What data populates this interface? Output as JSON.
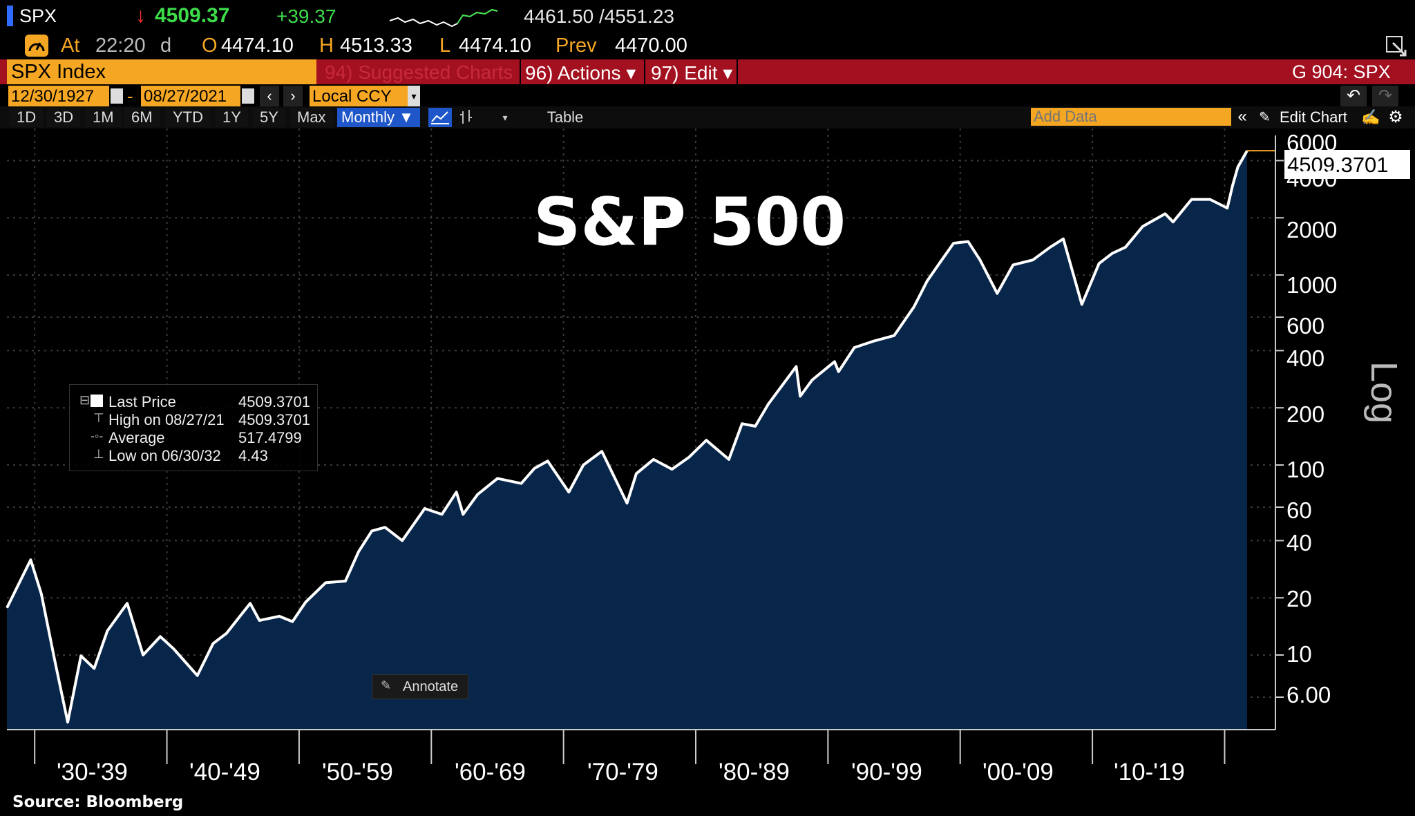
{
  "header": {
    "ticker": "SPX",
    "arrow": "↓",
    "last": "4509.37",
    "change": "+39.37",
    "bid_ask": "4461.50 /4551.23",
    "at_label": "At",
    "time": "22:20",
    "time_flag": "d",
    "open_label": "O",
    "open": "4474.10",
    "high_label": "H",
    "high": "4513.33",
    "low_label": "L",
    "low": "4474.10",
    "prev_label": "Prev",
    "prev": "4470.00"
  },
  "menubar": {
    "security": "SPX Index",
    "suggested": "94) Suggested Charts",
    "actions": "96) Actions ▾",
    "edit": "97) Edit ▾",
    "page_code": "G 904: SPX"
  },
  "datebar": {
    "start_date": "12/30/1927",
    "end_date": "08/27/2021",
    "dash": "-",
    "currency": "Local CCY"
  },
  "toolbar": {
    "periods": [
      "1D",
      "3D",
      "1M",
      "6M",
      "YTD",
      "1Y",
      "5Y",
      "Max"
    ],
    "frequency": "Monthly ▼",
    "table": "Table",
    "add_data_placeholder": "Add Data",
    "edit_chart": "Edit Chart"
  },
  "legend": {
    "rows": [
      {
        "label": "Last Price",
        "value": "4509.3701"
      },
      {
        "label": "High on 08/27/21",
        "value": "4509.3701"
      },
      {
        "label": "Average",
        "value": "517.4799"
      },
      {
        "label": "Low on 06/30/32",
        "value": "4.43"
      }
    ]
  },
  "annotate_label": "Annotate",
  "source": "Source: Bloomberg",
  "chart_data": {
    "type": "area",
    "title": "S&P 500",
    "scale": "Log",
    "last_value_label": "4509.3701",
    "y_ticks": [
      "6000",
      "4000",
      "2000",
      "1000",
      "600",
      "400",
      "200",
      "100",
      "60",
      "40",
      "20",
      "10",
      "6.00"
    ],
    "y_tick_values": [
      6000,
      4000,
      2000,
      1000,
      600,
      400,
      200,
      100,
      60,
      40,
      20,
      10,
      6
    ],
    "x_labels": [
      "'30-'39",
      "'40-'49",
      "'50-'59",
      "'60-'69",
      "'70-'79",
      "'80-'89",
      "'90-'99",
      "'00-'09",
      "'10-'19"
    ],
    "xlim": [
      1927.9,
      2021.7
    ],
    "ylim": [
      4.4,
      6000
    ],
    "series": [
      {
        "name": "SPX Index",
        "x": [
          1927.9,
          1929.7,
          1930.5,
          1931.5,
          1932.5,
          1933.5,
          1934.5,
          1935.5,
          1937.0,
          1938.2,
          1939.5,
          1940.5,
          1942.3,
          1943.5,
          1944.5,
          1946.3,
          1947.0,
          1948.5,
          1949.5,
          1950.5,
          1952.0,
          1953.5,
          1954.5,
          1955.5,
          1956.5,
          1957.8,
          1959.5,
          1960.8,
          1961.9,
          1962.4,
          1963.5,
          1965.0,
          1966.8,
          1967.8,
          1968.8,
          1970.4,
          1971.5,
          1972.9,
          1974.8,
          1975.5,
          1976.8,
          1978.2,
          1979.5,
          1980.8,
          1982.5,
          1983.5,
          1984.5,
          1985.5,
          1987.6,
          1987.9,
          1988.8,
          1990.5,
          1990.8,
          1992.0,
          1993.5,
          1995.0,
          1996.5,
          1997.5,
          1998.5,
          1999.5,
          2000.6,
          2001.5,
          2002.8,
          2004.0,
          2005.5,
          2006.8,
          2007.8,
          2009.2,
          2010.5,
          2011.5,
          2012.5,
          2013.8,
          2015.5,
          2016.1,
          2017.5,
          2018.9,
          2020.2,
          2020.6,
          2021.0,
          2021.7
        ],
        "values": [
          17.7,
          31.7,
          21.0,
          9.5,
          4.43,
          9.9,
          8.5,
          13.4,
          18.7,
          10.0,
          12.5,
          10.8,
          7.8,
          11.5,
          13.0,
          18.7,
          15.2,
          16.0,
          15.0,
          19.0,
          24.0,
          24.5,
          35.0,
          45.0,
          47.0,
          40.0,
          59.0,
          55.0,
          72.0,
          55.0,
          70.0,
          85.0,
          80.0,
          96.0,
          105.0,
          72.0,
          100.0,
          118.0,
          63.0,
          90.0,
          107.0,
          95.0,
          110.0,
          135.0,
          107.0,
          165.0,
          160.0,
          210.0,
          330.0,
          230.0,
          280.0,
          350.0,
          310.0,
          415.0,
          450.0,
          480.0,
          680.0,
          930.0,
          1170.0,
          1470.0,
          1500.0,
          1200.0,
          800.0,
          1130.0,
          1200.0,
          1400.0,
          1550.0,
          700.0,
          1150.0,
          1300.0,
          1400.0,
          1800.0,
          2100.0,
          1900.0,
          2500.0,
          2500.0,
          2250.0,
          2950.0,
          3700.0,
          4509.37
        ]
      }
    ]
  }
}
